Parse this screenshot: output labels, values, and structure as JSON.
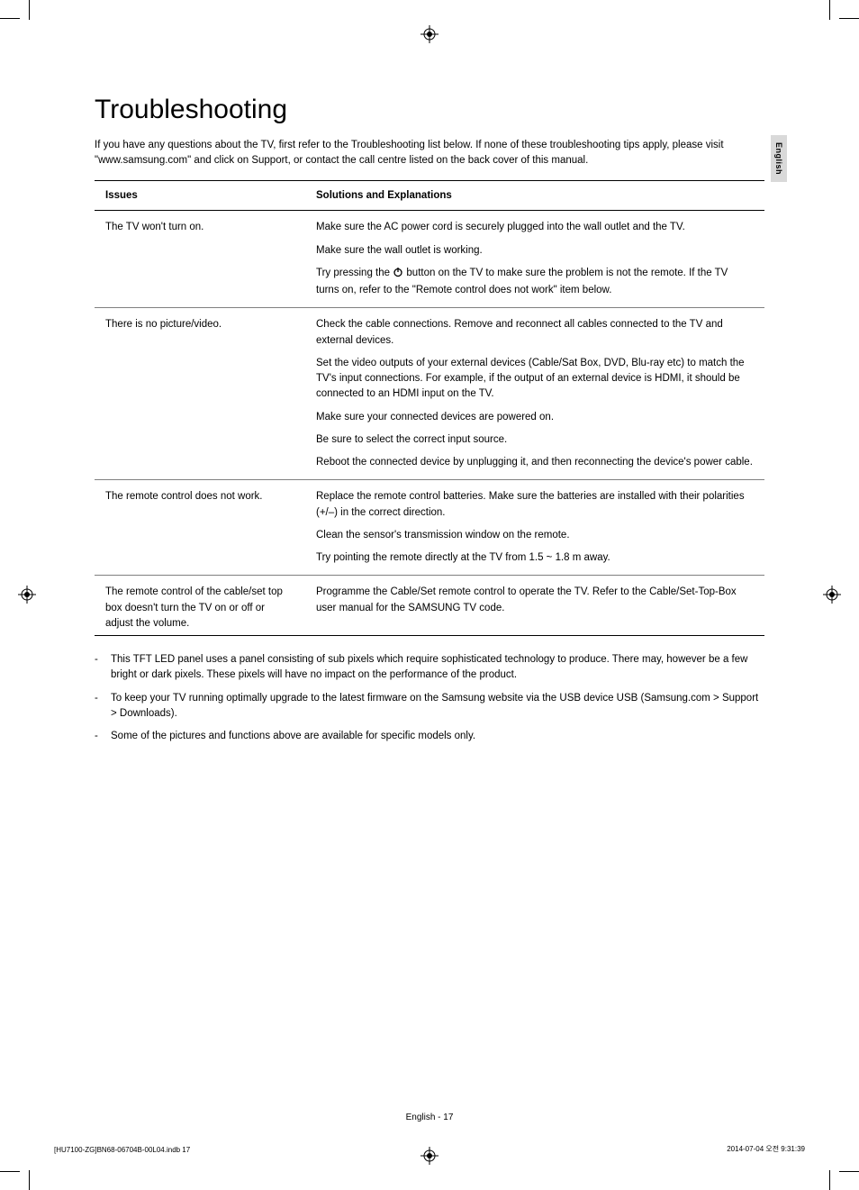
{
  "side_tab": "English",
  "heading": "Troubleshooting",
  "intro": "If you have any questions about the TV, first refer to the Troubleshooting list below. If none of these troubleshooting tips apply, please visit \"www.samsung.com\" and click on Support, or contact the call centre listed on the back cover of this manual.",
  "col1": "Issues",
  "col2": "Solutions and Explanations",
  "rows": [
    {
      "issue": "The TV won't turn on.",
      "sols": [
        "Make sure the AC power cord is securely plugged into the wall outlet and the TV.",
        "Make sure the wall outlet is working.",
        "__POWER__"
      ],
      "power_prefix": "Try pressing the ",
      "power_suffix": " button on the TV to make sure the problem is not the remote. If the TV turns on, refer to the \"Remote control does not work\" item below."
    },
    {
      "issue": "There is no picture/video.",
      "sols": [
        "Check the cable connections. Remove and reconnect all cables connected to the TV and external devices.",
        "Set the video outputs of your external devices (Cable/Sat Box, DVD, Blu-ray etc) to match the TV's input connections. For example, if the output of an external device is HDMI, it should be connected to an HDMI input on the TV.",
        "Make sure your connected devices are powered on.",
        "Be sure to select the correct input source.",
        "Reboot the connected device by unplugging it, and then reconnecting the device's power cable."
      ]
    },
    {
      "issue": "The remote control does not work.",
      "sols": [
        "Replace the remote control batteries. Make sure the batteries are installed with their polarities (+/–) in the correct direction.",
        "Clean the sensor's transmission window on the remote.",
        "Try pointing the remote directly at the TV from 1.5 ~ 1.8 m away."
      ]
    },
    {
      "issue": "The remote control of the cable/set top box doesn't turn the TV on or off or adjust the volume.",
      "sols": [
        "Programme the Cable/Set remote control to operate the TV. Refer to the Cable/Set-Top-Box user manual for the SAMSUNG TV code."
      ]
    }
  ],
  "notes": [
    "This TFT LED panel uses a panel consisting of sub pixels which require sophisticated technology to produce. There may, however be a few bright or dark pixels. These pixels will have no impact on the performance of the product.",
    "To keep your TV running optimally upgrade to the latest firmware on the Samsung website via the USB device USB (Samsung.com > Support > Downloads).",
    "Some of the pictures and functions above are available for specific models only."
  ],
  "footer_center": "English - 17",
  "footer_left": "[HU7100-ZG]BN68-06704B-00L04.indb   17",
  "footer_right": "2014-07-04   오전 9:31:39"
}
